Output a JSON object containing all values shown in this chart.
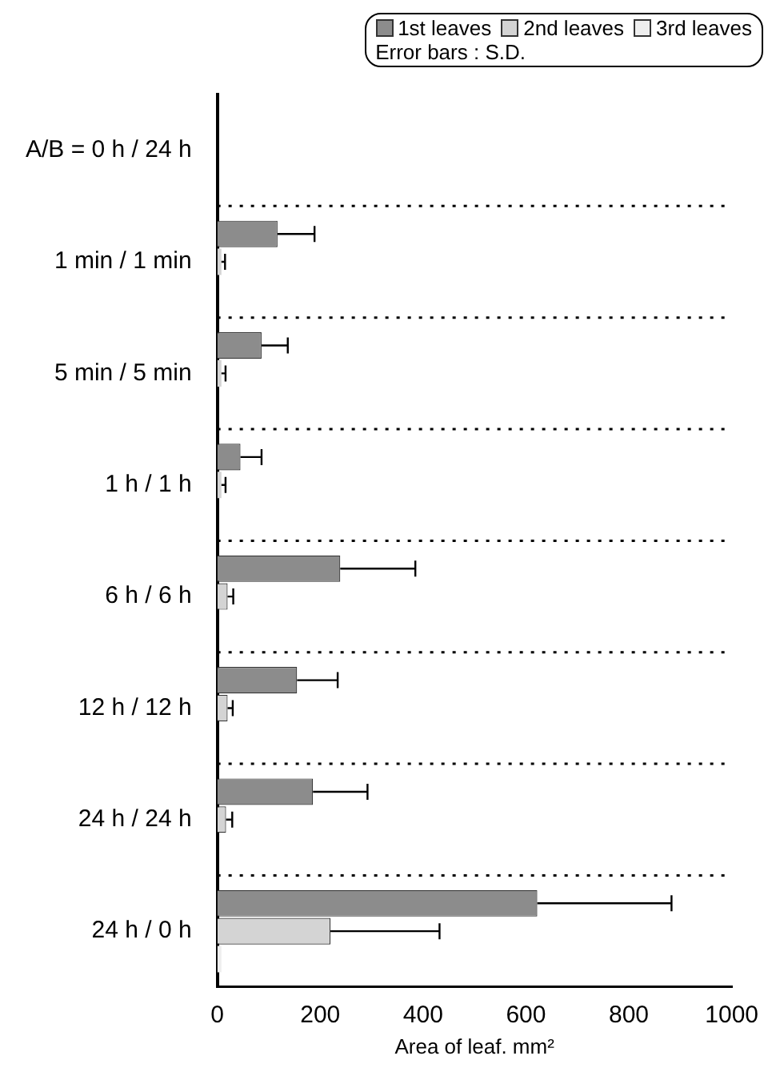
{
  "chart_data": {
    "type": "bar",
    "orientation": "horizontal",
    "categories": [
      "A/B = 0 h / 24 h",
      "1 min / 1 min",
      "5 min / 5 min",
      "1 h / 1 h",
      "6 h / 6 h",
      "12 h / 12 h",
      "24 h / 24 h",
      "24 h / 0 h"
    ],
    "series": [
      {
        "name": "1st leaves",
        "color": "#8c8c8c",
        "values": [
          0,
          117,
          86,
          45,
          239,
          155,
          186,
          622
        ],
        "errors": [
          null,
          72,
          51,
          41,
          146,
          79,
          106,
          261
        ]
      },
      {
        "name": "2nd leaves",
        "color": "#d4d4d4",
        "values": [
          0,
          8,
          8,
          8,
          20,
          20,
          17,
          220
        ],
        "errors": [
          null,
          7,
          8,
          8,
          11,
          10,
          12,
          212
        ]
      },
      {
        "name": "3rd leaves",
        "color": "#eeeeee",
        "values": [
          0,
          0,
          0,
          0,
          0,
          0,
          0,
          8
        ]
      }
    ],
    "xlim": [
      0,
      1000
    ],
    "xticks": [
      0,
      200,
      400,
      600,
      800,
      1000
    ],
    "xlabel": "Area of leaf. mm²",
    "grid": "y",
    "legend": "top right",
    "annotations": [
      "Error bars : S.D."
    ]
  }
}
